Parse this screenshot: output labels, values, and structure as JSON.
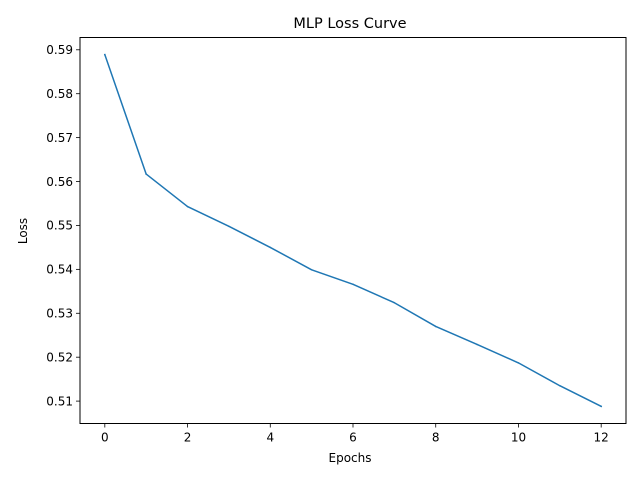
{
  "chart_data": {
    "type": "line",
    "title": "MLP Loss Curve",
    "xlabel": "Epochs",
    "ylabel": "Loss",
    "xlim": [
      -0.6,
      12.6
    ],
    "ylim": [
      0.5049,
      0.5928
    ],
    "xticks": [
      0,
      2,
      4,
      6,
      8,
      10,
      12
    ],
    "yticks": [
      0.51,
      0.52,
      0.53,
      0.54,
      0.55,
      0.56,
      0.57,
      0.58,
      0.59
    ],
    "grid": false,
    "colors": {
      "series": "#1f77b4"
    },
    "series": [
      {
        "x": [
          0,
          1,
          2,
          3,
          4,
          5,
          6,
          7,
          8,
          9,
          10,
          11,
          12
        ],
        "values": [
          0.5889,
          0.5617,
          0.5543,
          0.5498,
          0.545,
          0.5399,
          0.5366,
          0.5324,
          0.527,
          0.5229,
          0.5187,
          0.5135,
          0.5088
        ]
      }
    ]
  }
}
